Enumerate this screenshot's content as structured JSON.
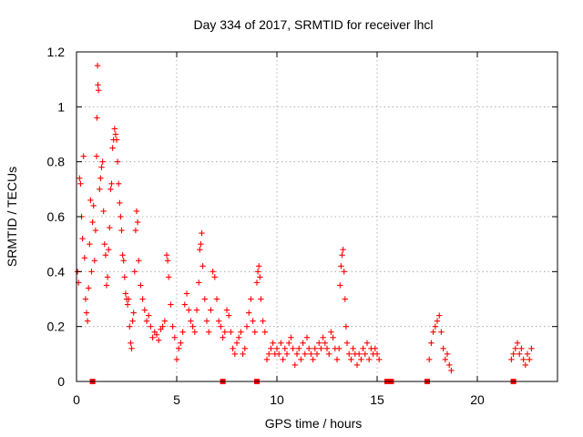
{
  "chart_data": {
    "type": "scatter",
    "title": "Day 334 of 2017, SRMTID for receiver lhcl",
    "xlabel": "GPS time / hours",
    "ylabel": "SRMTID / TECUs",
    "xlim": [
      0,
      24
    ],
    "ylim": [
      0,
      1.2
    ],
    "xticks": [
      0,
      5,
      10,
      15,
      20
    ],
    "yticks": [
      0,
      0.2,
      0.4,
      0.6,
      0.8,
      1,
      1.2
    ],
    "xtick_labels": [
      "0",
      "5",
      "10",
      "15",
      "20"
    ],
    "ytick_labels": [
      "0",
      "0.2",
      "0.4",
      "0.6",
      "0.8",
      "1",
      "1.2"
    ],
    "grid": true,
    "marker": "plus",
    "color": "#ff0000",
    "series": [
      {
        "name": "SRMTID",
        "points": [
          [
            0.05,
            0.4
          ],
          [
            0.1,
            0.36
          ],
          [
            0.15,
            0.74
          ],
          [
            0.2,
            0.72
          ],
          [
            0.25,
            0.6
          ],
          [
            0.3,
            0.52
          ],
          [
            0.35,
            0.82
          ],
          [
            0.4,
            0.45
          ],
          [
            0.45,
            0.3
          ],
          [
            0.5,
            0.25
          ],
          [
            0.55,
            0.22
          ],
          [
            0.6,
            0.34
          ],
          [
            0.65,
            0.5
          ],
          [
            0.7,
            0.66
          ],
          [
            0.75,
            0.4
          ],
          [
            0.8,
            0.58
          ],
          [
            0.85,
            0.64
          ],
          [
            0.9,
            0.44
          ],
          [
            0.95,
            0.55
          ],
          [
            1.0,
            0.82
          ],
          [
            1.02,
            0.96
          ],
          [
            1.05,
            1.15
          ],
          [
            1.07,
            1.08
          ],
          [
            1.1,
            1.06
          ],
          [
            1.15,
            0.7
          ],
          [
            1.2,
            0.74
          ],
          [
            1.25,
            0.78
          ],
          [
            1.3,
            0.8
          ],
          [
            1.35,
            0.62
          ],
          [
            1.4,
            0.5
          ],
          [
            1.45,
            0.46
          ],
          [
            1.5,
            0.35
          ],
          [
            1.55,
            0.38
          ],
          [
            1.6,
            0.48
          ],
          [
            1.65,
            0.56
          ],
          [
            1.7,
            0.7
          ],
          [
            1.75,
            0.72
          ],
          [
            1.8,
            0.85
          ],
          [
            1.85,
            0.88
          ],
          [
            1.9,
            0.92
          ],
          [
            1.95,
            0.9
          ],
          [
            2.0,
            0.88
          ],
          [
            2.05,
            0.8
          ],
          [
            2.1,
            0.72
          ],
          [
            2.15,
            0.65
          ],
          [
            2.2,
            0.6
          ],
          [
            2.25,
            0.55
          ],
          [
            2.3,
            0.46
          ],
          [
            2.35,
            0.44
          ],
          [
            2.4,
            0.38
          ],
          [
            2.45,
            0.32
          ],
          [
            2.5,
            0.3
          ],
          [
            2.55,
            0.28
          ],
          [
            2.6,
            0.3
          ],
          [
            2.65,
            0.2
          ],
          [
            2.7,
            0.14
          ],
          [
            2.75,
            0.12
          ],
          [
            2.8,
            0.22
          ],
          [
            2.85,
            0.25
          ],
          [
            2.9,
            0.4
          ],
          [
            2.95,
            0.55
          ],
          [
            3.0,
            0.62
          ],
          [
            3.05,
            0.58
          ],
          [
            3.1,
            0.44
          ],
          [
            3.2,
            0.35
          ],
          [
            3.3,
            0.3
          ],
          [
            3.4,
            0.26
          ],
          [
            3.5,
            0.22
          ],
          [
            3.6,
            0.24
          ],
          [
            3.7,
            0.2
          ],
          [
            3.8,
            0.16
          ],
          [
            3.9,
            0.18
          ],
          [
            4.0,
            0.17
          ],
          [
            4.1,
            0.15
          ],
          [
            4.2,
            0.19
          ],
          [
            4.3,
            0.2
          ],
          [
            4.4,
            0.22
          ],
          [
            4.5,
            0.46
          ],
          [
            4.55,
            0.44
          ],
          [
            4.6,
            0.38
          ],
          [
            4.7,
            0.28
          ],
          [
            4.8,
            0.2
          ],
          [
            4.9,
            0.16
          ],
          [
            5.0,
            0.08
          ],
          [
            5.1,
            0.12
          ],
          [
            5.2,
            0.14
          ],
          [
            5.3,
            0.18
          ],
          [
            5.4,
            0.28
          ],
          [
            5.5,
            0.32
          ],
          [
            5.6,
            0.26
          ],
          [
            5.7,
            0.22
          ],
          [
            5.8,
            0.2
          ],
          [
            5.9,
            0.18
          ],
          [
            6.0,
            0.26
          ],
          [
            6.1,
            0.36
          ],
          [
            6.15,
            0.48
          ],
          [
            6.2,
            0.5
          ],
          [
            6.25,
            0.54
          ],
          [
            6.3,
            0.42
          ],
          [
            6.4,
            0.3
          ],
          [
            6.5,
            0.22
          ],
          [
            6.6,
            0.18
          ],
          [
            6.7,
            0.26
          ],
          [
            6.8,
            0.4
          ],
          [
            6.9,
            0.38
          ],
          [
            7.0,
            0.3
          ],
          [
            7.1,
            0.22
          ],
          [
            7.2,
            0.2
          ],
          [
            7.3,
            0.16
          ],
          [
            7.4,
            0.18
          ],
          [
            7.5,
            0.26
          ],
          [
            7.6,
            0.24
          ],
          [
            7.7,
            0.18
          ],
          [
            7.8,
            0.12
          ],
          [
            7.9,
            0.1
          ],
          [
            8.0,
            0.14
          ],
          [
            8.1,
            0.16
          ],
          [
            8.2,
            0.18
          ],
          [
            8.3,
            0.1
          ],
          [
            8.4,
            0.12
          ],
          [
            8.5,
            0.2
          ],
          [
            8.6,
            0.25
          ],
          [
            8.7,
            0.3
          ],
          [
            8.8,
            0.22
          ],
          [
            8.9,
            0.18
          ],
          [
            9.0,
            0.36
          ],
          [
            9.05,
            0.4
          ],
          [
            9.1,
            0.42
          ],
          [
            9.15,
            0.38
          ],
          [
            9.2,
            0.3
          ],
          [
            9.3,
            0.22
          ],
          [
            9.4,
            0.18
          ],
          [
            9.5,
            0.08
          ],
          [
            9.6,
            0.1
          ],
          [
            9.7,
            0.12
          ],
          [
            9.8,
            0.14
          ],
          [
            9.9,
            0.1
          ],
          [
            10.0,
            0.12
          ],
          [
            10.1,
            0.1
          ],
          [
            10.2,
            0.14
          ],
          [
            10.3,
            0.08
          ],
          [
            10.4,
            0.12
          ],
          [
            10.5,
            0.1
          ],
          [
            10.6,
            0.14
          ],
          [
            10.7,
            0.16
          ],
          [
            10.8,
            0.12
          ],
          [
            10.9,
            0.06
          ],
          [
            11.0,
            0.1
          ],
          [
            11.1,
            0.12
          ],
          [
            11.2,
            0.08
          ],
          [
            11.3,
            0.14
          ],
          [
            11.4,
            0.1
          ],
          [
            11.5,
            0.16
          ],
          [
            11.6,
            0.12
          ],
          [
            11.7,
            0.1
          ],
          [
            11.8,
            0.08
          ],
          [
            11.9,
            0.12
          ],
          [
            12.0,
            0.1
          ],
          [
            12.1,
            0.14
          ],
          [
            12.2,
            0.12
          ],
          [
            12.3,
            0.16
          ],
          [
            12.4,
            0.14
          ],
          [
            12.5,
            0.12
          ],
          [
            12.6,
            0.1
          ],
          [
            12.7,
            0.18
          ],
          [
            12.8,
            0.16
          ],
          [
            12.9,
            0.12
          ],
          [
            13.0,
            0.08
          ],
          [
            13.1,
            0.12
          ],
          [
            13.15,
            0.35
          ],
          [
            13.2,
            0.42
          ],
          [
            13.25,
            0.46
          ],
          [
            13.3,
            0.48
          ],
          [
            13.35,
            0.4
          ],
          [
            13.4,
            0.3
          ],
          [
            13.45,
            0.2
          ],
          [
            13.5,
            0.14
          ],
          [
            13.6,
            0.1
          ],
          [
            13.7,
            0.08
          ],
          [
            13.8,
            0.12
          ],
          [
            13.9,
            0.1
          ],
          [
            14.0,
            0.06
          ],
          [
            14.1,
            0.1
          ],
          [
            14.2,
            0.08
          ],
          [
            14.3,
            0.12
          ],
          [
            14.4,
            0.1
          ],
          [
            14.5,
            0.14
          ],
          [
            14.6,
            0.08
          ],
          [
            14.7,
            0.12
          ],
          [
            14.8,
            0.1
          ],
          [
            14.9,
            0.12
          ],
          [
            15.0,
            0.1
          ],
          [
            15.1,
            0.08
          ],
          [
            17.6,
            0.08
          ],
          [
            17.7,
            0.14
          ],
          [
            17.8,
            0.18
          ],
          [
            17.9,
            0.2
          ],
          [
            18.0,
            0.22
          ],
          [
            18.1,
            0.24
          ],
          [
            18.2,
            0.18
          ],
          [
            18.3,
            0.12
          ],
          [
            18.4,
            0.08
          ],
          [
            18.5,
            0.1
          ],
          [
            18.6,
            0.06
          ],
          [
            18.7,
            0.04
          ],
          [
            21.7,
            0.08
          ],
          [
            21.8,
            0.1
          ],
          [
            21.9,
            0.12
          ],
          [
            22.0,
            0.14
          ],
          [
            22.1,
            0.1
          ],
          [
            22.2,
            0.12
          ],
          [
            22.3,
            0.08
          ],
          [
            22.4,
            0.06
          ],
          [
            22.5,
            0.1
          ],
          [
            22.6,
            0.08
          ],
          [
            22.7,
            0.12
          ]
        ]
      }
    ],
    "zero_markers": [
      0.8,
      7.3,
      9.0,
      15.5,
      15.7,
      17.5,
      21.8
    ]
  }
}
